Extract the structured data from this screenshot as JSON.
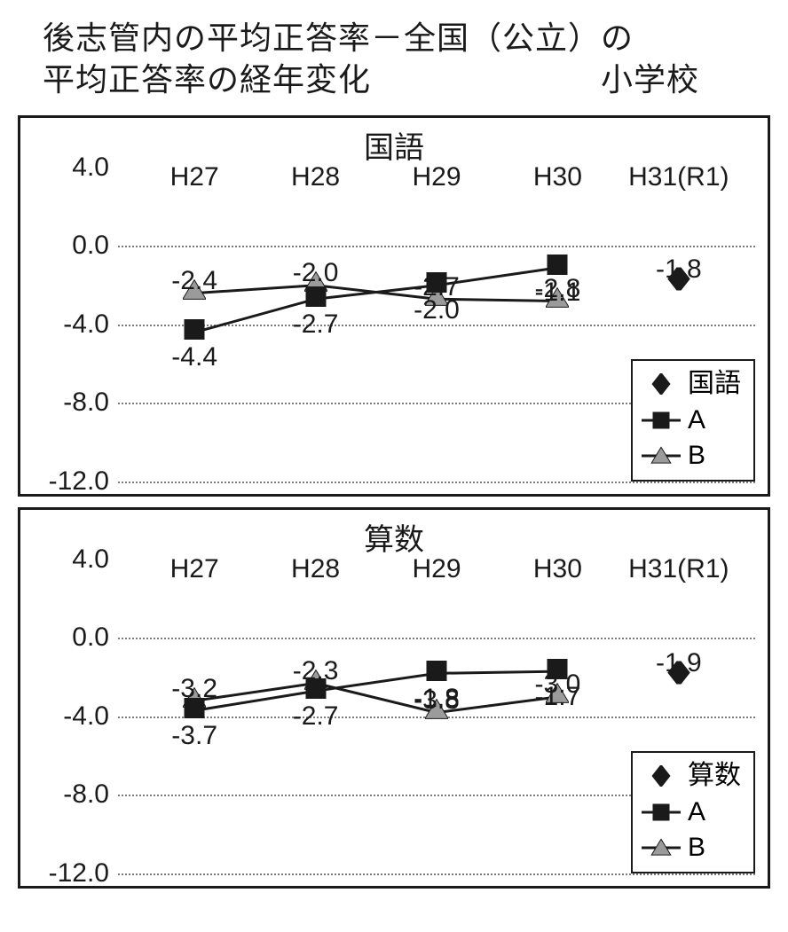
{
  "title_line1": "後志管内の平均正答率－全国（公立）の",
  "title_line2_left": "平均正答率の経年変化",
  "title_line2_right": "小学校",
  "colors": {
    "text": "#1a1a1a",
    "border": "#1a1a1a",
    "grid": "#7a7a7a",
    "series_a_fill": "#1a1a1a",
    "series_b_fill": "#9b9b9b",
    "series_point_fill": "#1a1a1a",
    "line": "#1a1a1a",
    "background": "#ffffff"
  },
  "y_axis": {
    "min": -12.0,
    "max": 4.0,
    "step": 4.0,
    "ticks": [
      4.0,
      0.0,
      -4.0,
      -8.0,
      -12.0
    ],
    "tick_labels": [
      "4.0",
      "0.0",
      "-4.0",
      "-8.0",
      "-12.0"
    ],
    "label_fontsize": 30
  },
  "x_axis": {
    "categories": [
      "H27",
      "H28",
      "H29",
      "H30",
      "H31(R1)"
    ],
    "positions_pct": [
      12,
      31,
      50,
      69,
      88
    ],
    "label_fontsize": 30
  },
  "charts": [
    {
      "title": "国語",
      "legend_point_label": "国語",
      "series": {
        "A": {
          "values": [
            -4.4,
            -2.7,
            -2.0,
            -1.1
          ],
          "labels": [
            "-4.4",
            "-2.7",
            "-2.0",
            "-1.1"
          ],
          "label_position": "below",
          "marker": "square",
          "color": "#1a1a1a"
        },
        "B": {
          "values": [
            -2.4,
            -2.0,
            -2.7,
            -2.8
          ],
          "labels": [
            "-2.4",
            "-2.0",
            "-2.7",
            "-2.8"
          ],
          "label_position": "above",
          "marker": "triangle",
          "color": "#9b9b9b"
        },
        "point": {
          "x_index": 4,
          "value": -1.8,
          "label": "-1.8",
          "label_position": "above",
          "marker": "diamond",
          "color": "#1a1a1a"
        }
      }
    },
    {
      "title": "算数",
      "legend_point_label": "算数",
      "series": {
        "A": {
          "values": [
            -3.7,
            -2.7,
            -1.8,
            -1.7
          ],
          "labels": [
            "-3.7",
            "-2.7",
            "-1.8",
            "-1.7"
          ],
          "label_position": "below",
          "marker": "square",
          "color": "#1a1a1a"
        },
        "B": {
          "values": [
            -3.2,
            -2.3,
            -3.8,
            -3.0
          ],
          "labels": [
            "-3.2",
            "-2.3",
            "-3.8",
            "-3.0"
          ],
          "label_position": "above",
          "marker": "triangle",
          "color": "#9b9b9b"
        },
        "point": {
          "x_index": 4,
          "value": -1.9,
          "label": "-1.9",
          "label_position": "above",
          "marker": "diamond",
          "color": "#1a1a1a"
        }
      }
    }
  ],
  "legend_labels": {
    "A": "A",
    "B": "B"
  },
  "style": {
    "title_fontsize": 36,
    "chart_title_fontsize": 34,
    "datalabel_fontsize": 30,
    "legend_fontsize": 30,
    "line_width": 3,
    "marker_size": 22,
    "chart_border_width": 3,
    "grid_dash": "dotted"
  }
}
